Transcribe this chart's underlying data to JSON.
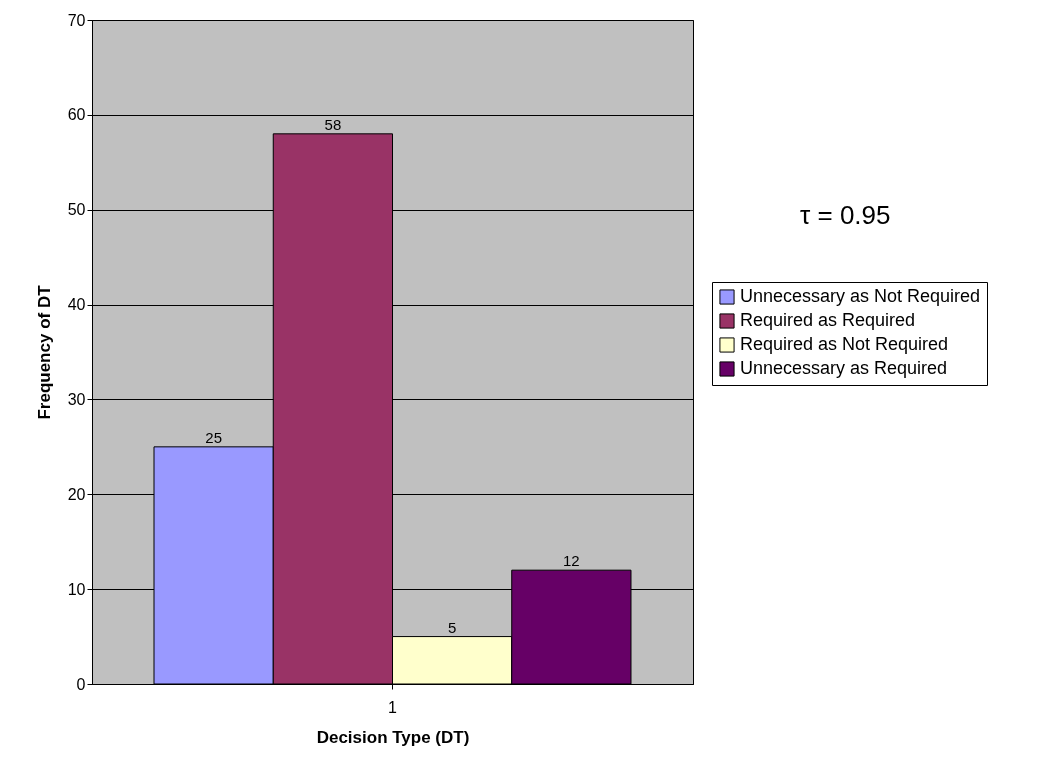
{
  "chart_data": {
    "type": "bar",
    "categories": [
      "1"
    ],
    "xlabel": "Decision Type (DT)",
    "ylabel": "Frequency of DT",
    "series": [
      {
        "name": "Unnecessary as Not Required",
        "color": "#9999ff",
        "values": [
          25
        ]
      },
      {
        "name": "Required as Required",
        "color": "#993366",
        "values": [
          58
        ]
      },
      {
        "name": "Required as Not Required",
        "color": "#ffffcc",
        "values": [
          5
        ]
      },
      {
        "name": "Unnecessary as Required",
        "color": "#660066",
        "values": [
          12
        ]
      }
    ],
    "ylim": [
      0,
      70
    ],
    "yticks": [
      0,
      10,
      20,
      30,
      40,
      50,
      60,
      70
    ],
    "grid": "y",
    "legend": "right",
    "data_labels": true,
    "annotations": [
      "τ = 0.95"
    ]
  }
}
